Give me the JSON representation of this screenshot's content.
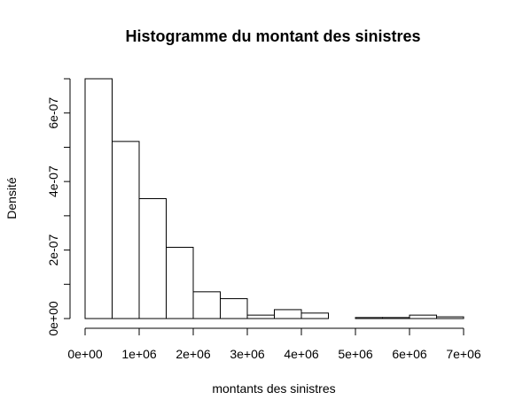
{
  "chart_data": {
    "type": "bar",
    "title": "Histogramme du montant des sinistres",
    "xlabel": "montants des sinistres",
    "ylabel": "Densité",
    "xlim": [
      0,
      7000000
    ],
    "ylim": [
      0,
      7e-07
    ],
    "bin_width": 500000,
    "bins": [
      {
        "start": 0,
        "end": 500000,
        "value": 7e-07
      },
      {
        "start": 500000,
        "end": 1000000,
        "value": 5.17e-07
      },
      {
        "start": 1000000,
        "end": 1500000,
        "value": 3.5e-07
      },
      {
        "start": 1500000,
        "end": 2000000,
        "value": 2.08e-07
      },
      {
        "start": 2000000,
        "end": 2500000,
        "value": 7.8e-08
      },
      {
        "start": 2500000,
        "end": 3000000,
        "value": 5.8e-08
      },
      {
        "start": 3000000,
        "end": 3500000,
        "value": 1e-08
      },
      {
        "start": 3500000,
        "end": 4000000,
        "value": 2.6e-08
      },
      {
        "start": 4000000,
        "end": 4500000,
        "value": 1.6e-08
      },
      {
        "start": 4500000,
        "end": 5000000,
        "value": 0
      },
      {
        "start": 5000000,
        "end": 5500000,
        "value": 3e-09
      },
      {
        "start": 5500000,
        "end": 6000000,
        "value": 3e-09
      },
      {
        "start": 6000000,
        "end": 6500000,
        "value": 1e-08
      },
      {
        "start": 6500000,
        "end": 7000000,
        "value": 5e-09
      }
    ],
    "x_ticks": [
      {
        "value": 0,
        "label": "0e+00"
      },
      {
        "value": 1000000,
        "label": "1e+06"
      },
      {
        "value": 2000000,
        "label": "2e+06"
      },
      {
        "value": 3000000,
        "label": "3e+06"
      },
      {
        "value": 4000000,
        "label": "4e+06"
      },
      {
        "value": 5000000,
        "label": "5e+06"
      },
      {
        "value": 6000000,
        "label": "6e+06"
      },
      {
        "value": 7000000,
        "label": "7e+06"
      }
    ],
    "y_ticks": [
      {
        "value": 0,
        "label": "0e+00"
      },
      {
        "value": 1e-07,
        "label": ""
      },
      {
        "value": 2e-07,
        "label": "2e-07"
      },
      {
        "value": 3e-07,
        "label": ""
      },
      {
        "value": 4e-07,
        "label": "4e-07"
      },
      {
        "value": 5e-07,
        "label": ""
      },
      {
        "value": 6e-07,
        "label": "6e-07"
      },
      {
        "value": 7e-07,
        "label": ""
      }
    ],
    "grid": false,
    "legend": "none"
  }
}
